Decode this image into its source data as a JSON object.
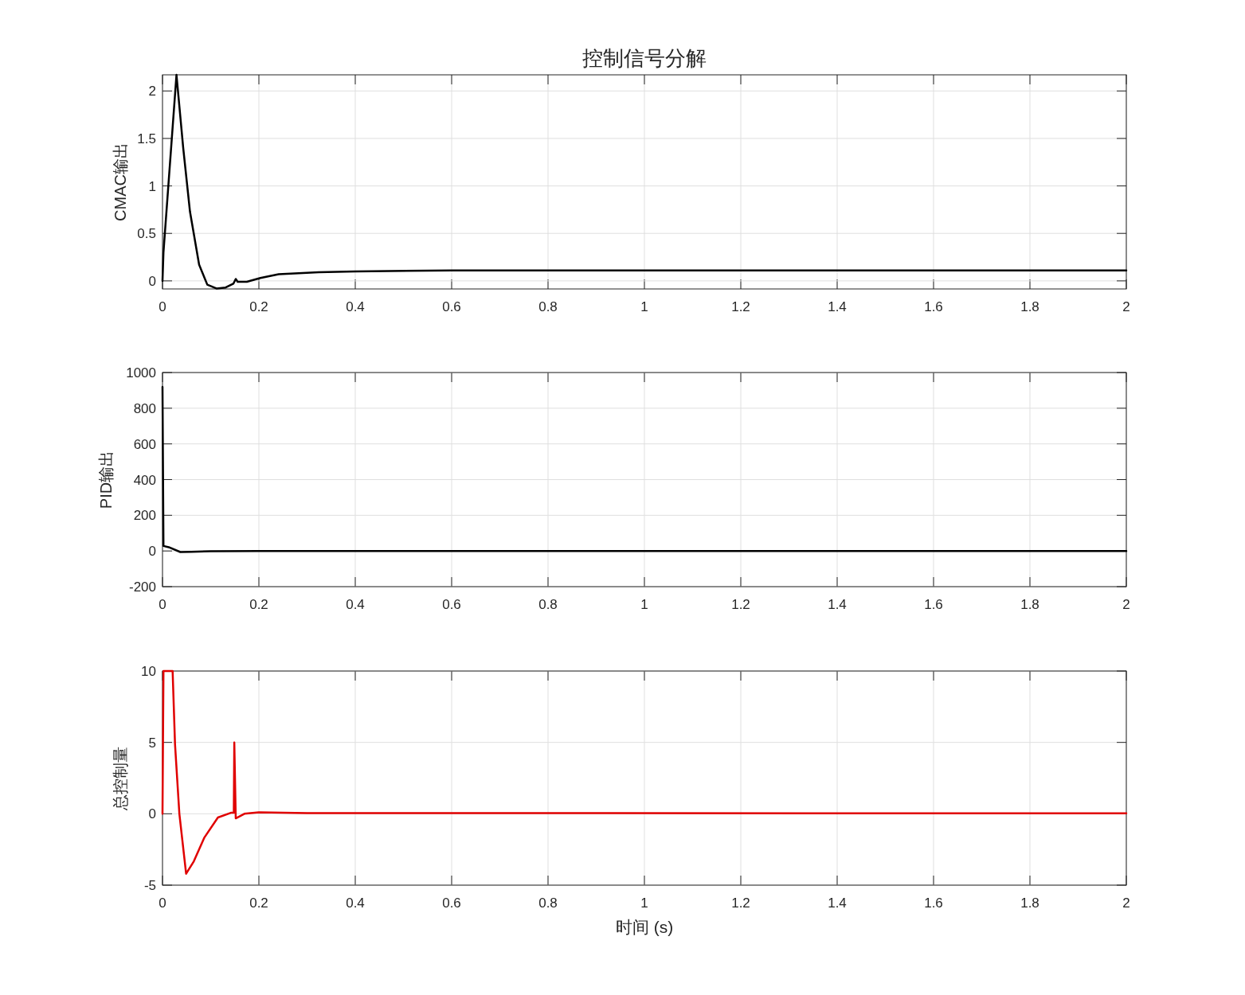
{
  "chart_data": [
    {
      "type": "line",
      "title": "控制信号分解",
      "ylabel": "CMAC输出",
      "xlim": [
        0,
        2
      ],
      "xticks": [
        0,
        0.2,
        0.4,
        0.6,
        0.8,
        1,
        1.2,
        1.4,
        1.6,
        1.8,
        2
      ],
      "ylim": [
        -0.085,
        2.17
      ],
      "yticks": [
        0,
        0.5,
        1,
        1.5,
        2
      ],
      "grid": true,
      "x": [
        0,
        0.002,
        0.029,
        0.043,
        0.057,
        0.076,
        0.093,
        0.112,
        0.131,
        0.147,
        0.152,
        0.156,
        0.175,
        0.203,
        0.241,
        0.324,
        0.4,
        0.6,
        1,
        2
      ],
      "series": [
        {
          "color": "#000000",
          "values": [
            0,
            0.3,
            2.17,
            1.4,
            0.73,
            0.17,
            -0.04,
            -0.08,
            -0.07,
            -0.03,
            0.02,
            -0.01,
            -0.01,
            0.03,
            0.07,
            0.09,
            0.1,
            0.11,
            0.11,
            0.11
          ]
        }
      ]
    },
    {
      "type": "line",
      "ylabel": "PID输出",
      "xlim": [
        0,
        2
      ],
      "xticks": [
        0,
        0.2,
        0.4,
        0.6,
        0.8,
        1,
        1.2,
        1.4,
        1.6,
        1.8,
        2
      ],
      "ylim": [
        -200,
        1000
      ],
      "yticks": [
        -200,
        0,
        200,
        400,
        600,
        800,
        1000
      ],
      "grid": true,
      "x": [
        0,
        0.002,
        0.013,
        0.037,
        0.06,
        0.1,
        0.2,
        2
      ],
      "series": [
        {
          "color": "#000000",
          "values": [
            920,
            28,
            21,
            -6,
            -5,
            -1,
            0,
            0
          ]
        }
      ]
    },
    {
      "type": "line",
      "ylabel": "总控制量",
      "xlabel": "时间 (s)",
      "xlim": [
        0,
        2
      ],
      "xticks": [
        0,
        0.2,
        0.4,
        0.6,
        0.8,
        1,
        1.2,
        1.4,
        1.6,
        1.8,
        2
      ],
      "ylim": [
        -5,
        10
      ],
      "yticks": [
        -5,
        0,
        5,
        10
      ],
      "grid": true,
      "x": [
        0,
        0.002,
        0.021,
        0.026,
        0.035,
        0.049,
        0.065,
        0.087,
        0.115,
        0.142,
        0.148,
        0.149,
        0.152,
        0.17,
        0.2,
        0.3,
        2
      ],
      "series": [
        {
          "color": "#e00000",
          "values": [
            0,
            10,
            10,
            4.86,
            0,
            -4.2,
            -3.33,
            -1.66,
            -0.26,
            0.07,
            0.07,
            5,
            -0.32,
            0,
            0.1,
            0.05,
            0.03
          ]
        }
      ]
    }
  ]
}
